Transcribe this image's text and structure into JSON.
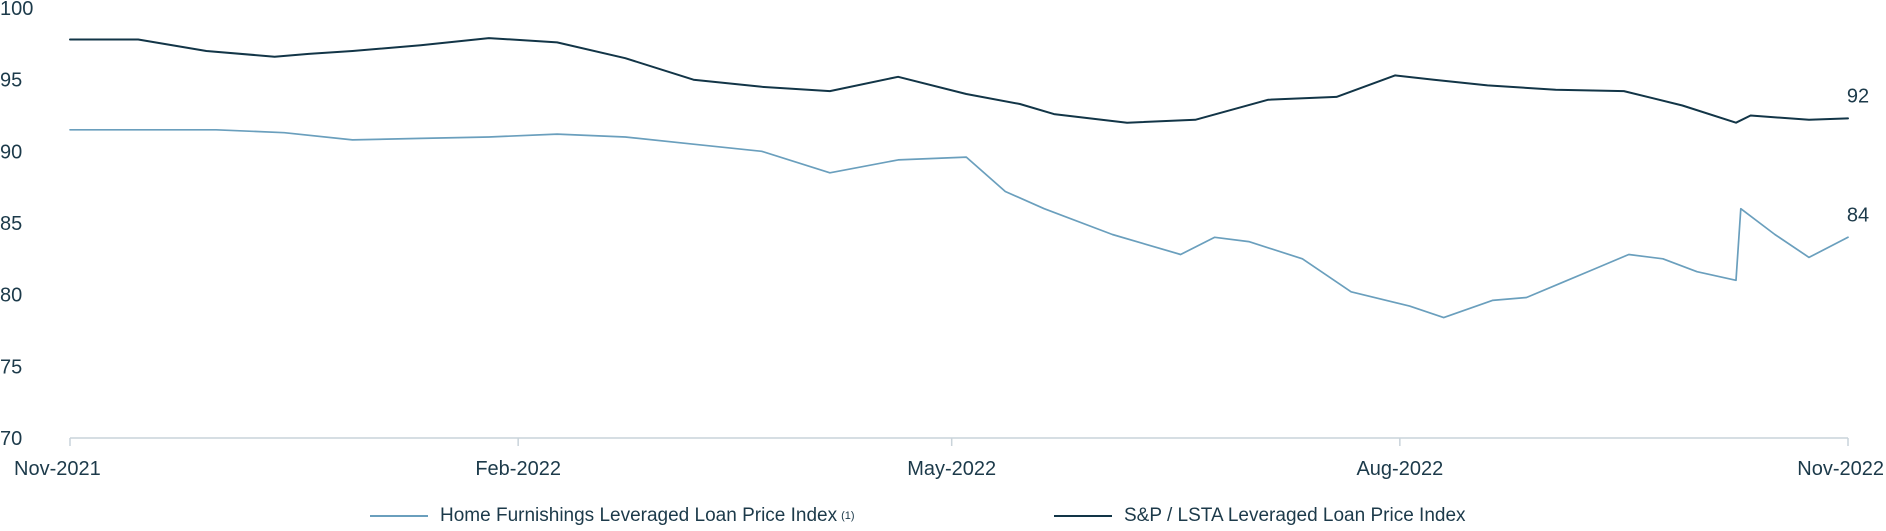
{
  "chart_data": {
    "type": "line",
    "ylim": [
      70,
      100
    ],
    "yticks": [
      70,
      75,
      80,
      85,
      90,
      95,
      100
    ],
    "xlim": [
      "2021-11-01",
      "2022-11-01"
    ],
    "xticks": [
      {
        "date": "2021-11-01",
        "label": "Nov-2021"
      },
      {
        "date": "2022-02-01",
        "label": "Feb-2022"
      },
      {
        "date": "2022-05-01",
        "label": "May-2022"
      },
      {
        "date": "2022-08-01",
        "label": "Aug-2022"
      },
      {
        "date": "2022-11-01",
        "label": "Nov-2022"
      }
    ],
    "grid": false,
    "legend_position": "bottom",
    "series": [
      {
        "name": "Home Furnishings Leveraged Loan Price Index",
        "name_superscript": "(1)",
        "color": "#6a9fbd",
        "end_label": "84",
        "points": [
          [
            "2021-11-01",
            91.5
          ],
          [
            "2021-11-15",
            91.5
          ],
          [
            "2021-12-01",
            91.5
          ],
          [
            "2021-12-15",
            91.3
          ],
          [
            "2021-12-29",
            90.8
          ],
          [
            "2022-01-12",
            90.9
          ],
          [
            "2022-01-26",
            91.0
          ],
          [
            "2022-02-09",
            91.2
          ],
          [
            "2022-02-23",
            91.0
          ],
          [
            "2022-03-09",
            90.5
          ],
          [
            "2022-03-23",
            90.0
          ],
          [
            "2022-04-06",
            88.5
          ],
          [
            "2022-04-20",
            89.4
          ],
          [
            "2022-05-04",
            89.6
          ],
          [
            "2022-05-12",
            87.2
          ],
          [
            "2022-05-20",
            86.0
          ],
          [
            "2022-06-03",
            84.2
          ],
          [
            "2022-06-17",
            82.8
          ],
          [
            "2022-06-24",
            84.0
          ],
          [
            "2022-07-01",
            83.7
          ],
          [
            "2022-07-12",
            82.5
          ],
          [
            "2022-07-22",
            80.2
          ],
          [
            "2022-08-03",
            79.2
          ],
          [
            "2022-08-10",
            78.4
          ],
          [
            "2022-08-20",
            79.6
          ],
          [
            "2022-08-27",
            79.8
          ],
          [
            "2022-09-03",
            80.8
          ],
          [
            "2022-09-10",
            81.8
          ],
          [
            "2022-09-17",
            82.8
          ],
          [
            "2022-09-24",
            82.5
          ],
          [
            "2022-10-01",
            81.6
          ],
          [
            "2022-10-09",
            81.0
          ],
          [
            "2022-10-10",
            86.0
          ],
          [
            "2022-10-17",
            84.2
          ],
          [
            "2022-10-24",
            82.6
          ],
          [
            "2022-11-01",
            84.0
          ]
        ]
      },
      {
        "name": "S&P / LSTA Leveraged Loan Price Index",
        "color": "#123547",
        "end_label": "92",
        "points": [
          [
            "2021-11-01",
            97.8
          ],
          [
            "2021-11-15",
            97.8
          ],
          [
            "2021-11-29",
            97.0
          ],
          [
            "2021-12-13",
            96.6
          ],
          [
            "2021-12-20",
            96.8
          ],
          [
            "2021-12-29",
            97.0
          ],
          [
            "2022-01-12",
            97.4
          ],
          [
            "2022-01-26",
            97.9
          ],
          [
            "2022-02-09",
            97.6
          ],
          [
            "2022-02-23",
            96.5
          ],
          [
            "2022-03-09",
            95.0
          ],
          [
            "2022-03-23",
            94.5
          ],
          [
            "2022-04-06",
            94.2
          ],
          [
            "2022-04-20",
            95.2
          ],
          [
            "2022-05-04",
            94.0
          ],
          [
            "2022-05-15",
            93.3
          ],
          [
            "2022-05-22",
            92.6
          ],
          [
            "2022-06-06",
            92.0
          ],
          [
            "2022-06-20",
            92.2
          ],
          [
            "2022-07-05",
            93.6
          ],
          [
            "2022-07-19",
            93.8
          ],
          [
            "2022-07-31",
            95.3
          ],
          [
            "2022-08-08",
            95.0
          ],
          [
            "2022-08-19",
            94.6
          ],
          [
            "2022-09-02",
            94.3
          ],
          [
            "2022-09-16",
            94.2
          ],
          [
            "2022-09-28",
            93.2
          ],
          [
            "2022-10-09",
            92.0
          ],
          [
            "2022-10-12",
            92.5
          ],
          [
            "2022-10-24",
            92.2
          ],
          [
            "2022-11-01",
            92.3
          ]
        ]
      }
    ]
  }
}
